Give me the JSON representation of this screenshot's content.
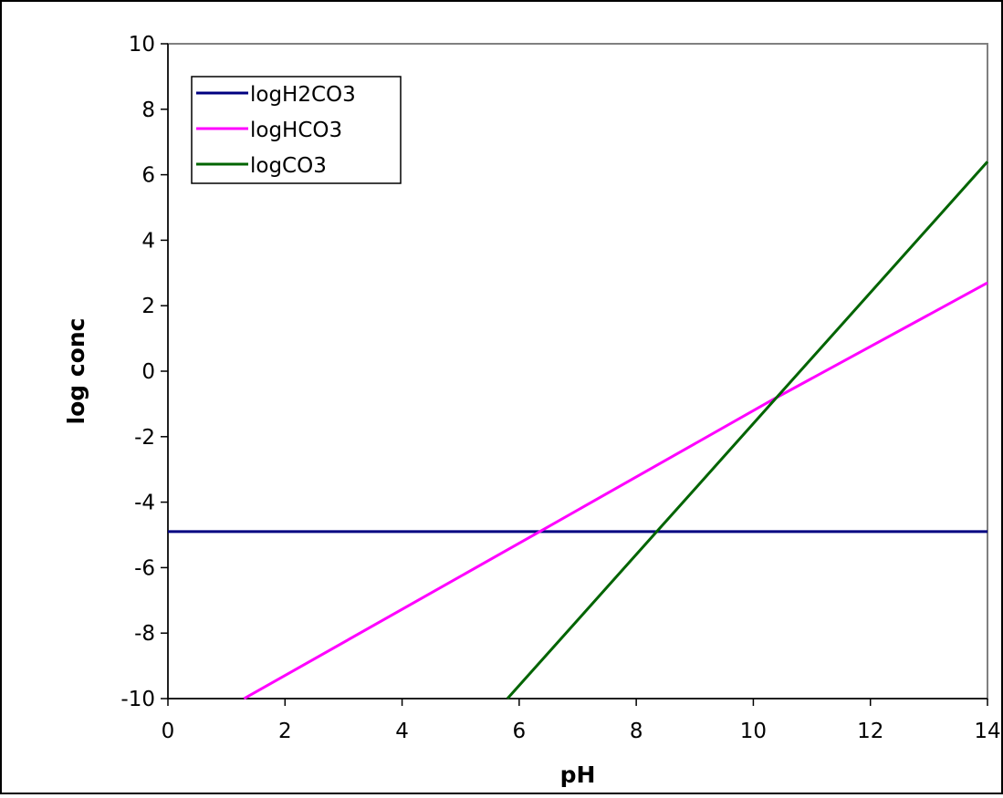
{
  "chart_data": {
    "type": "line",
    "title": "",
    "xlabel": "pH",
    "ylabel": "log conc",
    "xlim": [
      0,
      14
    ],
    "ylim": [
      -10,
      10
    ],
    "xticks": [
      0,
      2,
      4,
      6,
      8,
      10,
      12,
      14
    ],
    "yticks": [
      -10,
      -8,
      -6,
      -4,
      -2,
      0,
      2,
      4,
      6,
      8,
      10
    ],
    "grid": false,
    "legend_position": "top-left",
    "series": [
      {
        "name": "logH2CO3",
        "color": "#000080",
        "x": [
          0,
          14
        ],
        "y": [
          -4.9,
          -4.9
        ]
      },
      {
        "name": "logHCO3",
        "color": "#ff00ff",
        "x": [
          1.3,
          6.35,
          10.3,
          14
        ],
        "y": [
          -10,
          -4.9,
          -0.9,
          2.7
        ]
      },
      {
        "name": "logCO3",
        "color": "#006400",
        "x": [
          5.8,
          8.35,
          10.35,
          14
        ],
        "y": [
          -10,
          -4.9,
          -0.9,
          6.4
        ]
      }
    ]
  }
}
